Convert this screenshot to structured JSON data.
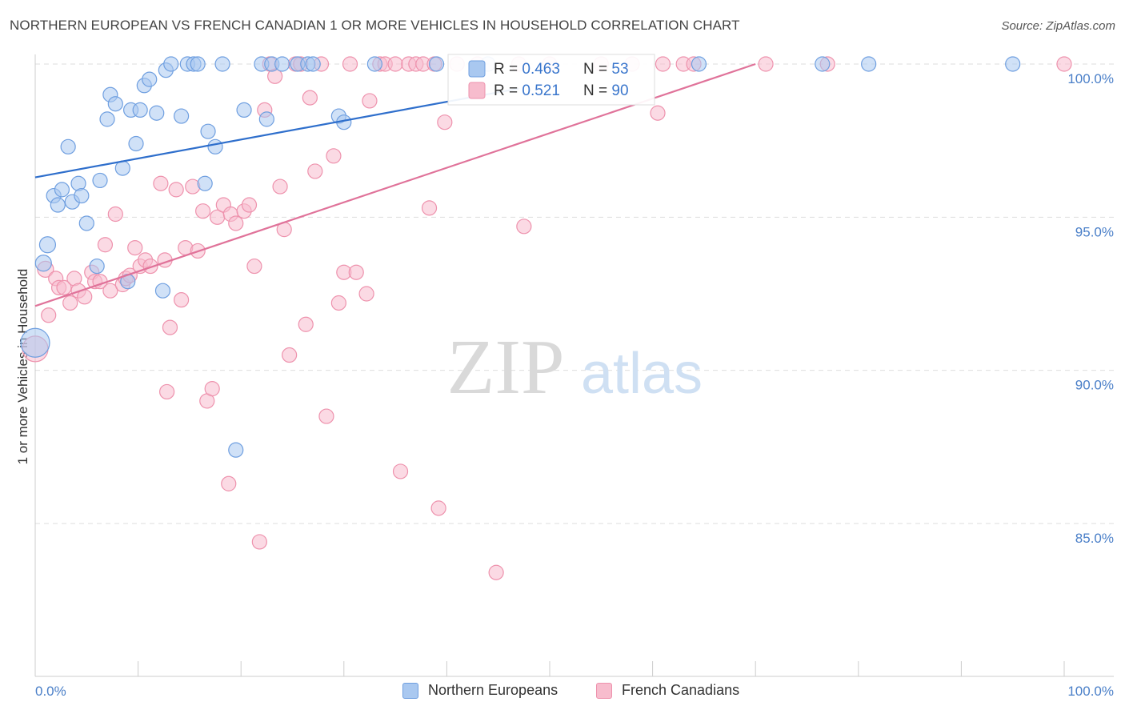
{
  "title": "NORTHERN EUROPEAN VS FRENCH CANADIAN 1 OR MORE VEHICLES IN HOUSEHOLD CORRELATION CHART",
  "source": "Source: ZipAtlas.com",
  "watermark": {
    "zip": "ZIP",
    "atlas": "atlas"
  },
  "colors": {
    "blue_fill": "#a9c8f0",
    "blue_stroke": "#6f9fe0",
    "blue_line": "#2f6fcc",
    "pink_fill": "#f7bccd",
    "pink_stroke": "#ee92ad",
    "pink_line": "#e0739a",
    "tick_label": "#4a7fc8",
    "grid": "#dddddd"
  },
  "legend_top": {
    "rows": [
      {
        "r_label": "R = ",
        "r_value": "0.463",
        "n_label": "N = ",
        "n_value": "53",
        "series": "blue"
      },
      {
        "r_label": "R = ",
        "r_value": "0.521",
        "n_label": "N = ",
        "n_value": "90",
        "series": "pink"
      }
    ]
  },
  "legend_bottom": [
    {
      "label": "Northern Europeans",
      "series": "blue"
    },
    {
      "label": "French Canadians",
      "series": "pink"
    }
  ],
  "chart_data": {
    "type": "scatter",
    "title": "NORTHERN EUROPEAN VS FRENCH CANADIAN 1 OR MORE VEHICLES IN HOUSEHOLD CORRELATION CHART",
    "xlabel": "",
    "ylabel": "1 or more Vehicles in Household",
    "xlim": [
      0,
      100
    ],
    "ylim": [
      80.5,
      100.5
    ],
    "x_tick_labels": [
      "0.0%",
      "100.0%"
    ],
    "y_ticks": [
      85,
      90,
      95,
      100
    ],
    "y_tick_labels": [
      "85.0%",
      "90.0%",
      "95.0%",
      "100.0%"
    ],
    "grid": true,
    "legend_placement": "top-center",
    "series": [
      {
        "name": "Northern Europeans",
        "color": "#a9c8f0",
        "trend": {
          "x": [
            0,
            47
          ],
          "y": [
            96.3,
            99.2
          ]
        },
        "points": [
          [
            0,
            90.9,
            18
          ],
          [
            1.2,
            94.1,
            10
          ],
          [
            0.8,
            93.5,
            10
          ],
          [
            1.8,
            95.7,
            9
          ],
          [
            2.2,
            95.4,
            9
          ],
          [
            2.6,
            95.9,
            9
          ],
          [
            3.2,
            97.3,
            9
          ],
          [
            3.6,
            95.5,
            9
          ],
          [
            4.2,
            96.1,
            9
          ],
          [
            4.5,
            95.7,
            9
          ],
          [
            5.0,
            94.8,
            9
          ],
          [
            6.0,
            93.4,
            9
          ],
          [
            6.3,
            96.2,
            9
          ],
          [
            7.0,
            98.2,
            9
          ],
          [
            7.3,
            99.0,
            9
          ],
          [
            7.8,
            98.7,
            9
          ],
          [
            8.5,
            96.6,
            9
          ],
          [
            9.0,
            92.9,
            9
          ],
          [
            9.3,
            98.5,
            9
          ],
          [
            9.8,
            97.4,
            9
          ],
          [
            10.2,
            98.5,
            9
          ],
          [
            10.6,
            99.3,
            9
          ],
          [
            11.1,
            99.5,
            9
          ],
          [
            11.8,
            98.4,
            9
          ],
          [
            12.4,
            92.6,
            9
          ],
          [
            12.7,
            99.8,
            9
          ],
          [
            13.2,
            100.0,
            9
          ],
          [
            14.2,
            98.3,
            9
          ],
          [
            14.8,
            100.0,
            9
          ],
          [
            15.4,
            100.0,
            9
          ],
          [
            15.8,
            100.0,
            9
          ],
          [
            16.5,
            96.1,
            9
          ],
          [
            16.8,
            97.8,
            9
          ],
          [
            17.5,
            97.3,
            9
          ],
          [
            18.2,
            100.0,
            9
          ],
          [
            19.5,
            87.4,
            9
          ],
          [
            20.3,
            98.5,
            9
          ],
          [
            22.0,
            100.0,
            9
          ],
          [
            22.5,
            98.2,
            9
          ],
          [
            23.0,
            100.0,
            9
          ],
          [
            24.0,
            100.0,
            9
          ],
          [
            25.5,
            100.0,
            9
          ],
          [
            26.5,
            100.0,
            9
          ],
          [
            27.0,
            100.0,
            9
          ],
          [
            29.5,
            98.3,
            9
          ],
          [
            30.0,
            98.1,
            9
          ],
          [
            33.0,
            100.0,
            9
          ],
          [
            39.0,
            100.0,
            9
          ],
          [
            44.0,
            100.0,
            9
          ],
          [
            64.5,
            100.0,
            9
          ],
          [
            76.5,
            100.0,
            9
          ],
          [
            81.0,
            100.0,
            9
          ],
          [
            95.0,
            100.0,
            9
          ]
        ]
      },
      {
        "name": "French Canadians",
        "color": "#f7bccd",
        "trend": {
          "x": [
            0,
            70
          ],
          "y": [
            92.1,
            100.0
          ]
        },
        "points": [
          [
            0,
            90.7,
            16
          ],
          [
            1.0,
            93.3,
            10
          ],
          [
            1.3,
            91.8,
            9
          ],
          [
            2.0,
            93.0,
            9
          ],
          [
            2.3,
            92.7,
            9
          ],
          [
            2.8,
            92.7,
            9
          ],
          [
            3.4,
            92.2,
            9
          ],
          [
            3.8,
            93.0,
            9
          ],
          [
            4.2,
            92.6,
            9
          ],
          [
            4.8,
            92.4,
            9
          ],
          [
            5.5,
            93.2,
            9
          ],
          [
            5.8,
            92.9,
            9
          ],
          [
            6.3,
            92.9,
            9
          ],
          [
            6.8,
            94.1,
            9
          ],
          [
            7.3,
            92.6,
            9
          ],
          [
            7.8,
            95.1,
            9
          ],
          [
            8.5,
            92.8,
            9
          ],
          [
            8.8,
            93.0,
            9
          ],
          [
            9.2,
            93.1,
            9
          ],
          [
            9.7,
            94.0,
            9
          ],
          [
            10.2,
            93.4,
            9
          ],
          [
            10.7,
            93.6,
            9
          ],
          [
            11.2,
            93.4,
            9
          ],
          [
            12.2,
            96.1,
            9
          ],
          [
            12.6,
            93.6,
            9
          ],
          [
            13.1,
            91.4,
            9
          ],
          [
            12.8,
            89.3,
            9
          ],
          [
            13.7,
            95.9,
            9
          ],
          [
            14.2,
            92.3,
            9
          ],
          [
            14.6,
            94.0,
            9
          ],
          [
            15.3,
            96.0,
            9
          ],
          [
            15.8,
            93.9,
            9
          ],
          [
            16.3,
            95.2,
            9
          ],
          [
            16.7,
            89.0,
            9
          ],
          [
            17.2,
            89.4,
            9
          ],
          [
            17.7,
            95.0,
            9
          ],
          [
            18.3,
            95.4,
            9
          ],
          [
            18.8,
            86.3,
            9
          ],
          [
            19.0,
            95.1,
            9
          ],
          [
            19.5,
            94.8,
            9
          ],
          [
            20.3,
            95.2,
            9
          ],
          [
            20.8,
            95.4,
            9
          ],
          [
            21.3,
            93.4,
            9
          ],
          [
            21.8,
            84.4,
            9
          ],
          [
            22.3,
            98.5,
            9
          ],
          [
            22.8,
            100.0,
            9
          ],
          [
            23.3,
            99.6,
            9
          ],
          [
            23.8,
            96.0,
            9
          ],
          [
            24.2,
            94.6,
            9
          ],
          [
            24.7,
            90.5,
            9
          ],
          [
            25.3,
            100.0,
            9
          ],
          [
            25.8,
            100.0,
            9
          ],
          [
            26.3,
            91.5,
            9
          ],
          [
            26.7,
            98.9,
            9
          ],
          [
            27.2,
            96.5,
            9
          ],
          [
            27.8,
            100.0,
            9
          ],
          [
            28.3,
            88.5,
            9
          ],
          [
            29.0,
            97.0,
            9
          ],
          [
            29.5,
            92.2,
            9
          ],
          [
            30.0,
            93.2,
            9
          ],
          [
            30.6,
            100.0,
            9
          ],
          [
            31.2,
            93.2,
            9
          ],
          [
            32.2,
            92.5,
            9
          ],
          [
            32.5,
            98.8,
            9
          ],
          [
            33.5,
            100.0,
            9
          ],
          [
            34.0,
            100.0,
            9
          ],
          [
            35.0,
            100.0,
            9
          ],
          [
            35.5,
            86.7,
            9
          ],
          [
            36.3,
            100.0,
            9
          ],
          [
            37.0,
            100.0,
            9
          ],
          [
            37.7,
            100.0,
            9
          ],
          [
            38.3,
            95.3,
            9
          ],
          [
            38.8,
            100.0,
            9
          ],
          [
            39.2,
            85.5,
            9
          ],
          [
            39.8,
            98.1,
            9
          ],
          [
            41.0,
            100.0,
            9
          ],
          [
            43.0,
            100.0,
            9
          ],
          [
            44.8,
            83.4,
            9
          ],
          [
            47.0,
            100.0,
            9
          ],
          [
            47.5,
            94.7,
            9
          ],
          [
            50.0,
            100.0,
            9
          ],
          [
            55.0,
            100.0,
            9
          ],
          [
            58.0,
            100.0,
            9
          ],
          [
            60.5,
            98.4,
            9
          ],
          [
            61.0,
            100.0,
            9
          ],
          [
            63.0,
            100.0,
            9
          ],
          [
            64.0,
            100.0,
            9
          ],
          [
            71.0,
            100.0,
            9
          ],
          [
            77.0,
            100.0,
            9
          ],
          [
            100.0,
            100.0,
            9
          ]
        ]
      }
    ]
  }
}
